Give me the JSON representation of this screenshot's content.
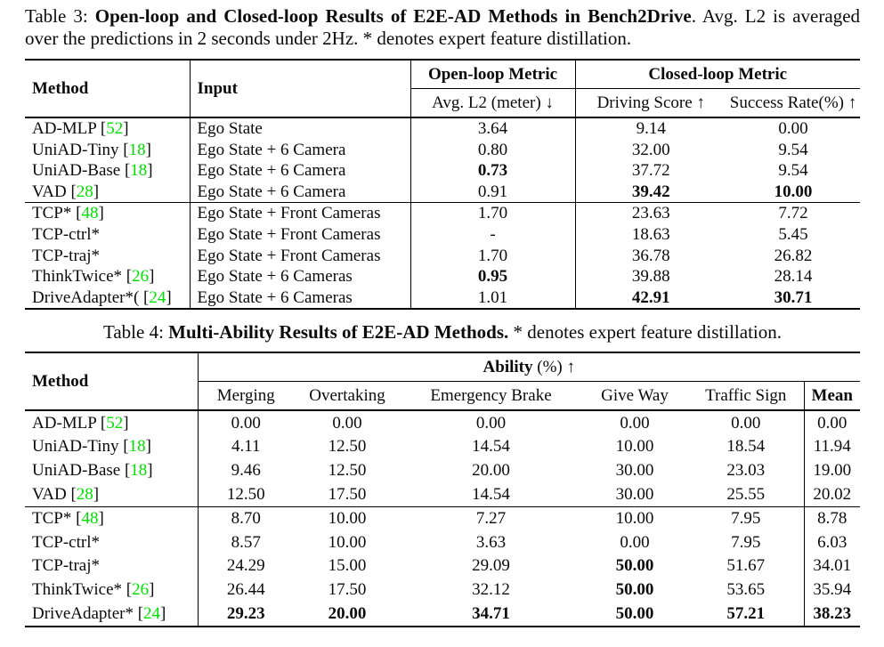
{
  "colors": {
    "citation": "#00e000",
    "text": "#0b0b0b",
    "rules": "#000000"
  },
  "table3": {
    "caption": {
      "label": "Table 3: ",
      "title_bold": "Open-loop and Closed-loop Results of E2E-AD Methods in Bench2Drive",
      "rest": ". Avg. L2 is averaged over the predictions in 2 seconds under 2Hz. * denotes expert feature distillation."
    },
    "header": {
      "method": "Method",
      "input": "Input",
      "open_loop": "Open-loop Metric",
      "closed_loop": "Closed-loop Metric",
      "sub_avg_l2": "Avg. L2 (meter) ↓",
      "sub_driving_score": "Driving Score ↑",
      "sub_success_rate": "Success Rate(%) ↑"
    },
    "groups": [
      {
        "rows": [
          {
            "method": {
              "text": "AD-MLP",
              "cite": "52"
            },
            "input": "Ego State",
            "cells": [
              {
                "v": "3.64"
              },
              {
                "v": "9.14"
              },
              {
                "v": "0.00"
              }
            ]
          },
          {
            "method": {
              "text": "UniAD-Tiny",
              "cite": "18"
            },
            "input": "Ego State + 6 Camera",
            "cells": [
              {
                "v": "0.80"
              },
              {
                "v": "32.00"
              },
              {
                "v": "9.54"
              }
            ]
          },
          {
            "method": {
              "text": "UniAD-Base",
              "cite": "18"
            },
            "input": "Ego State + 6 Camera",
            "cells": [
              {
                "v": "0.73",
                "b": true
              },
              {
                "v": "37.72"
              },
              {
                "v": "9.54"
              }
            ]
          },
          {
            "method": {
              "text": "VAD",
              "cite": "28"
            },
            "input": "Ego State + 6 Camera",
            "cells": [
              {
                "v": "0.91"
              },
              {
                "v": "39.42",
                "b": true
              },
              {
                "v": "10.00",
                "b": true
              }
            ]
          }
        ]
      },
      {
        "rows": [
          {
            "method": {
              "text": "TCP*",
              "cite": "48"
            },
            "input": "Ego State + Front Cameras",
            "cells": [
              {
                "v": "1.70"
              },
              {
                "v": "23.63"
              },
              {
                "v": "7.72"
              }
            ]
          },
          {
            "method": {
              "text": "TCP-ctrl*"
            },
            "input": "Ego State + Front Cameras",
            "cells": [
              {
                "v": "-"
              },
              {
                "v": "18.63"
              },
              {
                "v": "5.45"
              }
            ]
          },
          {
            "method": {
              "text": "TCP-traj*"
            },
            "input": "Ego State + Front Cameras",
            "cells": [
              {
                "v": "1.70"
              },
              {
                "v": "36.78"
              },
              {
                "v": "26.82"
              }
            ]
          },
          {
            "method": {
              "text": "ThinkTwice*",
              "cite": "26"
            },
            "input": "Ego State + 6 Cameras",
            "cells": [
              {
                "v": "0.95",
                "b": true
              },
              {
                "v": "39.88"
              },
              {
                "v": "28.14"
              }
            ]
          },
          {
            "method": {
              "text": "DriveAdapter*(",
              "cite": "24"
            },
            "input": "Ego State + 6 Cameras",
            "cells": [
              {
                "v": "1.01"
              },
              {
                "v": "42.91",
                "b": true
              },
              {
                "v": "30.71",
                "b": true
              }
            ]
          }
        ]
      }
    ]
  },
  "table4": {
    "caption": {
      "label": "Table 4: ",
      "title_bold": "Multi-Ability Results of E2E-AD Methods.",
      "rest": " * denotes expert feature distillation."
    },
    "header": {
      "method": "Method",
      "ability_bold": "Ability",
      "ability_rest": " (%) ↑",
      "sub": [
        "Merging",
        "Overtaking",
        "Emergency Brake",
        "Give Way",
        "Traffic Sign",
        "Mean"
      ]
    },
    "groups": [
      {
        "rows": [
          {
            "method": {
              "text": "AD-MLP",
              "cite": "52"
            },
            "cells": [
              {
                "v": "0.00"
              },
              {
                "v": "0.00"
              },
              {
                "v": "0.00"
              },
              {
                "v": "0.00"
              },
              {
                "v": "0.00"
              },
              {
                "v": "0.00"
              }
            ]
          },
          {
            "method": {
              "text": "UniAD-Tiny",
              "cite": "18"
            },
            "cells": [
              {
                "v": "4.11"
              },
              {
                "v": "12.50"
              },
              {
                "v": "14.54"
              },
              {
                "v": "10.00"
              },
              {
                "v": "18.54"
              },
              {
                "v": "11.94"
              }
            ]
          },
          {
            "method": {
              "text": "UniAD-Base",
              "cite": "18"
            },
            "cells": [
              {
                "v": "9.46"
              },
              {
                "v": "12.50"
              },
              {
                "v": "20.00"
              },
              {
                "v": "30.00"
              },
              {
                "v": "23.03"
              },
              {
                "v": "19.00"
              }
            ]
          },
          {
            "method": {
              "text": "VAD",
              "cite": "28"
            },
            "cells": [
              {
                "v": "12.50"
              },
              {
                "v": "17.50"
              },
              {
                "v": "14.54"
              },
              {
                "v": "30.00"
              },
              {
                "v": "25.55"
              },
              {
                "v": "20.02"
              }
            ]
          }
        ]
      },
      {
        "rows": [
          {
            "method": {
              "text": "TCP*",
              "cite": "48"
            },
            "cells": [
              {
                "v": "8.70"
              },
              {
                "v": "10.00"
              },
              {
                "v": "7.27"
              },
              {
                "v": "10.00"
              },
              {
                "v": "7.95"
              },
              {
                "v": "8.78"
              }
            ]
          },
          {
            "method": {
              "text": "TCP-ctrl*"
            },
            "cells": [
              {
                "v": "8.57"
              },
              {
                "v": "10.00"
              },
              {
                "v": "3.63"
              },
              {
                "v": "0.00"
              },
              {
                "v": "7.95"
              },
              {
                "v": "6.03"
              }
            ]
          },
          {
            "method": {
              "text": "TCP-traj*"
            },
            "cells": [
              {
                "v": "24.29"
              },
              {
                "v": "15.00"
              },
              {
                "v": "29.09"
              },
              {
                "v": "50.00",
                "b": true
              },
              {
                "v": "51.67"
              },
              {
                "v": "34.01"
              }
            ]
          },
          {
            "method": {
              "text": "ThinkTwice*",
              "cite": "26"
            },
            "cells": [
              {
                "v": "26.44"
              },
              {
                "v": "17.50"
              },
              {
                "v": "32.12"
              },
              {
                "v": "50.00",
                "b": true
              },
              {
                "v": "53.65"
              },
              {
                "v": "35.94"
              }
            ]
          },
          {
            "method": {
              "text": "DriveAdapter*",
              "cite": "24"
            },
            "cells": [
              {
                "v": "29.23",
                "b": true
              },
              {
                "v": "20.00",
                "b": true
              },
              {
                "v": "34.71",
                "b": true
              },
              {
                "v": "50.00",
                "b": true
              },
              {
                "v": "57.21",
                "b": true
              },
              {
                "v": "38.23",
                "b": true
              }
            ]
          }
        ]
      }
    ]
  }
}
